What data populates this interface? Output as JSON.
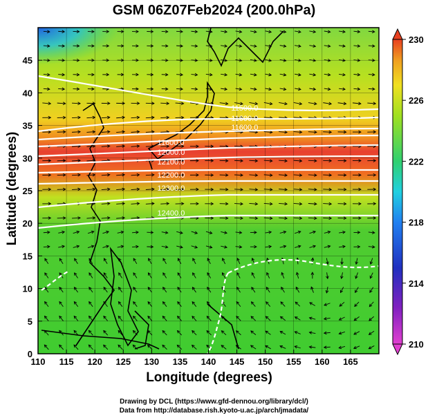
{
  "title": "GSM 06Z07Feb2024 (200.0hPa)",
  "xlabel": "Longitude (degrees)",
  "ylabel": "Latitude  (degrees)",
  "credit_line1": "Drawing by DCL (https://www.gfd-dennou.org/library/dcl/)",
  "credit_line2": "Data from http://database.rish.kyoto-u.ac.jp/arch/jmadata/",
  "x_ticks": [
    "110",
    "115",
    "120",
    "125",
    "130",
    "135",
    "140",
    "145",
    "150",
    "155",
    "160",
    "165"
  ],
  "y_ticks": [
    "0",
    "5",
    "10",
    "15",
    "20",
    "25",
    "30",
    "35",
    "40",
    "45"
  ],
  "colorbar_ticks": [
    "230",
    "226",
    "222",
    "218",
    "214",
    "210"
  ],
  "colors": {
    "ramp": [
      "#e040d0",
      "#2030c0",
      "#2080f0",
      "#20d0e0",
      "#30d070",
      "#40cc20",
      "#a0e020",
      "#f0e020",
      "#f0a020",
      "#e84020"
    ]
  },
  "chart_data": {
    "type": "heatmap",
    "variable": "temperature",
    "xlim": [
      110,
      170
    ],
    "ylim": [
      0,
      50
    ],
    "colorbar_range": [
      210,
      230
    ],
    "contour_labels": [
      {
        "text": "11500.0",
        "lon": 144,
        "lat": 37.3
      },
      {
        "text": "11600.0",
        "lon": 144,
        "lat": 35.7
      },
      {
        "text": "11600.0",
        "lon": 144,
        "lat": 34.3
      },
      {
        "text": "11600.0",
        "lon": 131,
        "lat": 32.0
      },
      {
        "text": "12000.0",
        "lon": 131,
        "lat": 30.5
      },
      {
        "text": "12100.0",
        "lon": 131,
        "lat": 29.0
      },
      {
        "text": "12200.0",
        "lon": 131,
        "lat": 27.0
      },
      {
        "text": "12300.0",
        "lon": 131,
        "lat": 25.0
      },
      {
        "text": "12400.0",
        "lon": 131,
        "lat": 21.2
      }
    ]
  }
}
